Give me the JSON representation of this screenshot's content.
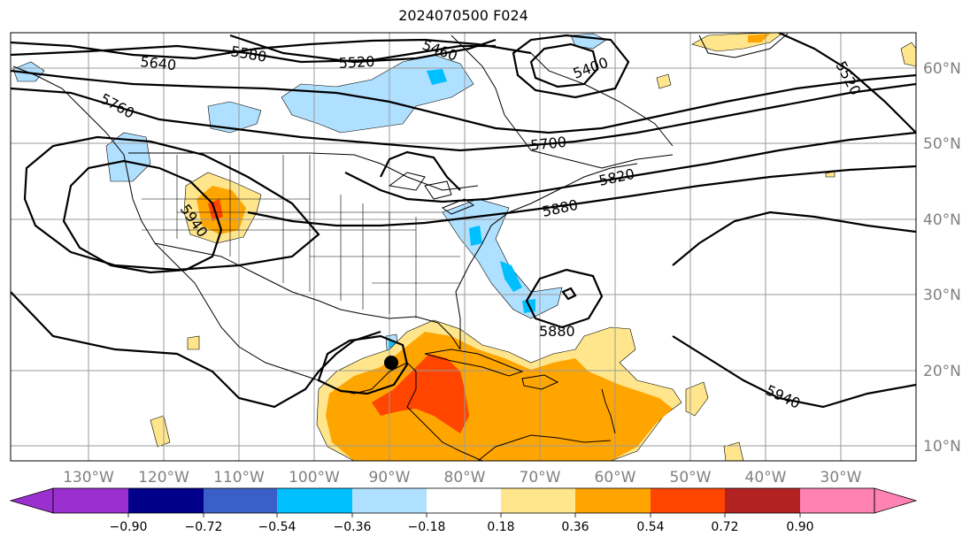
{
  "title": "2024070500 F024",
  "lon_labels": [
    "130°W",
    "120°W",
    "110°W",
    "100°W",
    "90°W",
    "80°W",
    "70°W",
    "60°W",
    "50°W",
    "40°W",
    "30°W"
  ],
  "lat_labels": [
    "60°N",
    "50°N",
    "40°N",
    "30°N",
    "20°N",
    "10°N"
  ],
  "contour_labels": {
    "c5640": "5640",
    "c5580": "5580",
    "c5520a": "5520",
    "c5460": "5460",
    "c5400": "5400",
    "c5520b": "5520",
    "c5760": "5760",
    "c5700": "5700",
    "c5820": "5820",
    "c5880a": "5880",
    "c5880b": "5880",
    "c5940a": "5940",
    "c5940b": "5940"
  },
  "colorbar": {
    "ticks": [
      "−0.90",
      "−0.72",
      "−0.54",
      "−0.36",
      "−0.18",
      "0.18",
      "0.36",
      "0.54",
      "0.72",
      "0.90"
    ],
    "colors": {
      "under": "#9b30d0",
      "b1": "#00008b",
      "b2": "#3b5fc8",
      "b3": "#00bfff",
      "b4": "#b0e0ff",
      "b5": "#ffffff",
      "b6": "#ffe68c",
      "b7": "#ffa500",
      "b8": "#ff4500",
      "b9": "#b22222",
      "over": "#ff82b4"
    }
  }
}
